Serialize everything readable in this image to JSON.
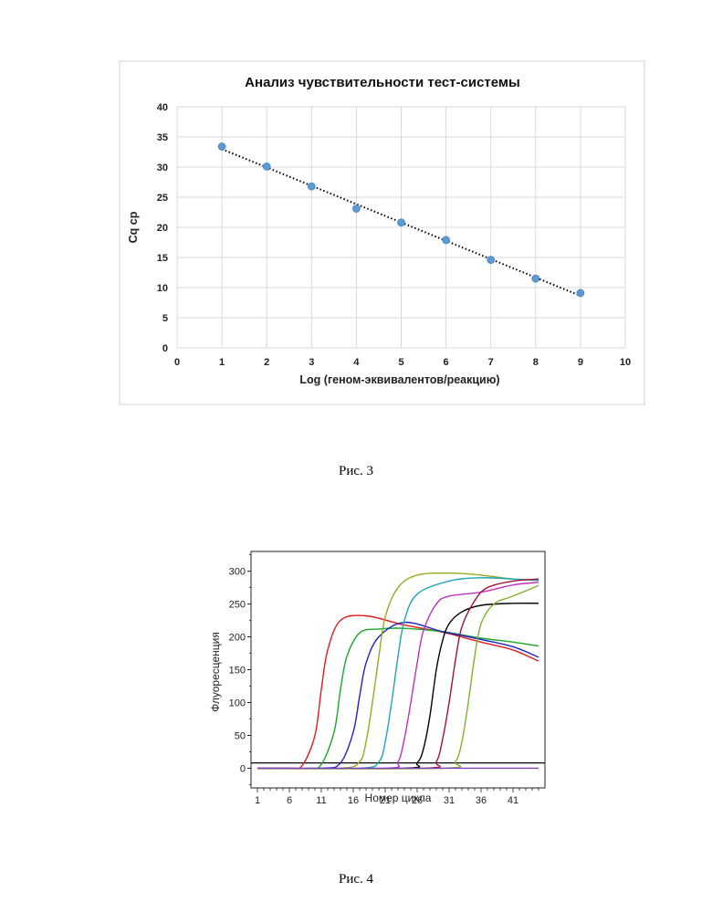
{
  "figures": [
    {
      "caption": "Рис. 3"
    },
    {
      "caption": "Рис. 4"
    }
  ],
  "chart_data": [
    {
      "type": "scatter",
      "title": "Анализ чувствительности тест-системы",
      "xlabel": "Log (геном-эквивалентов/реакцию)",
      "ylabel": "Cq ср",
      "xlim": [
        0,
        10
      ],
      "ylim": [
        0,
        40
      ],
      "x_ticks": [
        0,
        1,
        2,
        3,
        4,
        5,
        6,
        7,
        8,
        9,
        10
      ],
      "y_ticks": [
        0,
        5,
        10,
        15,
        20,
        25,
        30,
        35,
        40
      ],
      "grid": true,
      "trendline": "linear, dotted",
      "marker_color": "#5b9bd5",
      "x": [
        1,
        2,
        3,
        4,
        5,
        6,
        7,
        8,
        9
      ],
      "values": [
        33.4,
        30.1,
        26.8,
        23.1,
        20.8,
        17.9,
        14.6,
        11.5,
        9.1
      ]
    },
    {
      "type": "line",
      "xlabel": "Номер цикла",
      "ylabel": "Флуоресценция",
      "xlim": [
        0,
        46
      ],
      "ylim": [
        -30,
        330
      ],
      "x_ticks": [
        1,
        6,
        11,
        16,
        21,
        26,
        31,
        36,
        41
      ],
      "y_ticks": [
        0,
        50,
        100,
        150,
        200,
        250,
        300
      ],
      "grid": false,
      "threshold": 8,
      "series": [
        {
          "color": "#e41a1c",
          "points": [
            [
              1,
              0
            ],
            [
              6,
              0
            ],
            [
              8,
              4
            ],
            [
              10,
              50
            ],
            [
              11,
              120
            ],
            [
              12,
              180
            ],
            [
              14,
              225
            ],
            [
              18,
              232
            ],
            [
              24,
              218
            ],
            [
              30,
              207
            ],
            [
              36,
              192
            ],
            [
              41,
              180
            ],
            [
              45,
              163
            ]
          ]
        },
        {
          "color": "#1ca82c",
          "points": [
            [
              1,
              0
            ],
            [
              9,
              0
            ],
            [
              11,
              6
            ],
            [
              13,
              55
            ],
            [
              14,
              120
            ],
            [
              15,
              170
            ],
            [
              17,
              206
            ],
            [
              20,
              212
            ],
            [
              24,
              213
            ],
            [
              30,
              208
            ],
            [
              36,
              198
            ],
            [
              41,
              192
            ],
            [
              45,
              186
            ]
          ]
        },
        {
          "color": "#2020d0",
          "points": [
            [
              1,
              0
            ],
            [
              11,
              0
            ],
            [
              14,
              8
            ],
            [
              16,
              55
            ],
            [
              17,
              110
            ],
            [
              18,
              160
            ],
            [
              20,
              200
            ],
            [
              24,
              222
            ],
            [
              30,
              208
            ],
            [
              36,
              196
            ],
            [
              41,
              185
            ],
            [
              45,
              169
            ]
          ]
        },
        {
          "color": "#9aa822",
          "points": [
            [
              1,
              0
            ],
            [
              14,
              0
            ],
            [
              17,
              10
            ],
            [
              18,
              40
            ],
            [
              19,
              100
            ],
            [
              20,
              170
            ],
            [
              21,
              230
            ],
            [
              23,
              275
            ],
            [
              26,
              294
            ],
            [
              31,
              297
            ],
            [
              36,
              294
            ],
            [
              41,
              288
            ],
            [
              45,
              286
            ]
          ]
        },
        {
          "color": "#1aa8b8",
          "points": [
            [
              1,
              0
            ],
            [
              17,
              0
            ],
            [
              20,
              10
            ],
            [
              21,
              40
            ],
            [
              22,
              100
            ],
            [
              23,
              170
            ],
            [
              24,
              225
            ],
            [
              26,
              265
            ],
            [
              31,
              285
            ],
            [
              36,
              290
            ],
            [
              41,
              288
            ],
            [
              45,
              286
            ]
          ]
        },
        {
          "color": "#c030c0",
          "points": [
            [
              1,
              0
            ],
            [
              21,
              0
            ],
            [
              23,
              10
            ],
            [
              24,
              45
            ],
            [
              25,
              100
            ],
            [
              26,
              160
            ],
            [
              27,
              210
            ],
            [
              29,
              250
            ],
            [
              31,
              262
            ],
            [
              36,
              268
            ],
            [
              41,
              279
            ],
            [
              45,
              283
            ]
          ]
        },
        {
          "color": "#000000",
          "points": [
            [
              1,
              0
            ],
            [
              24,
              0
            ],
            [
              26,
              8
            ],
            [
              27,
              30
            ],
            [
              28,
              80
            ],
            [
              29,
              150
            ],
            [
              30,
              195
            ],
            [
              31,
              220
            ],
            [
              33,
              238
            ],
            [
              36,
              248
            ],
            [
              41,
              251
            ],
            [
              45,
              251
            ]
          ]
        },
        {
          "color": "#a01040",
          "points": [
            [
              1,
              0
            ],
            [
              27,
              0
            ],
            [
              29,
              10
            ],
            [
              30,
              45
            ],
            [
              31,
              100
            ],
            [
              32,
              165
            ],
            [
              33,
              215
            ],
            [
              35,
              255
            ],
            [
              37,
              275
            ],
            [
              41,
              285
            ],
            [
              45,
              288
            ]
          ]
        },
        {
          "color": "#80b030",
          "points": [
            [
              1,
              0
            ],
            [
              30,
              0
            ],
            [
              32,
              10
            ],
            [
              33,
              40
            ],
            [
              34,
              100
            ],
            [
              35,
              170
            ],
            [
              36,
              220
            ],
            [
              38,
              250
            ],
            [
              41,
              262
            ],
            [
              45,
              278
            ]
          ]
        },
        {
          "color": "#8040c0",
          "points": [
            [
              1,
              0
            ],
            [
              45,
              0
            ]
          ]
        }
      ]
    }
  ]
}
